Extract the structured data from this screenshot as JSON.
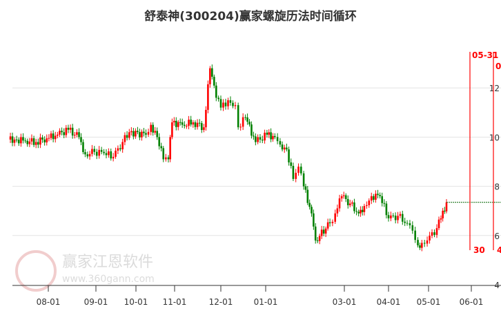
{
  "chart_data": {
    "type": "candlestick",
    "title": "舒泰神(300204)赢家螺旋历法时间循环",
    "x_ticks": [
      "08-01",
      "09-01",
      "10-01",
      "11-01",
      "12-01",
      "01-01",
      "03-01",
      "04-01",
      "05-01",
      "06-01"
    ],
    "y_ticks": [
      4,
      6,
      8,
      10,
      12
    ],
    "ylim": [
      4,
      13.6
    ],
    "grid": true,
    "colors": {
      "up": "#ff0000",
      "down": "#008000",
      "cycle_line": "#ff0000",
      "last_price_line": "#006400"
    },
    "last_price": 7.35,
    "cycle_markers": [
      {
        "date": "05-31",
        "label_top": "05-31",
        "label_bottom": "30"
      },
      {
        "date": "06-17",
        "label_top": "0",
        "label_bottom": "4"
      }
    ],
    "closes": [
      [
        "07-10",
        9.9
      ],
      [
        "07-17",
        9.85
      ],
      [
        "07-24",
        9.8
      ],
      [
        "07-31",
        9.95
      ],
      [
        "08-07",
        10.1
      ],
      [
        "08-14",
        10.3
      ],
      [
        "08-21",
        10.0
      ],
      [
        "08-25",
        9.3
      ],
      [
        "08-31",
        9.4
      ],
      [
        "09-07",
        9.35
      ],
      [
        "09-14",
        9.2
      ],
      [
        "09-21",
        9.8
      ],
      [
        "09-26",
        10.2
      ],
      [
        "10-09",
        10.1
      ],
      [
        "10-13",
        10.5
      ],
      [
        "10-18",
        10.0
      ],
      [
        "10-23",
        9.1
      ],
      [
        "10-27",
        9.1
      ],
      [
        "10-30",
        10.6
      ],
      [
        "11-06",
        10.5
      ],
      [
        "11-13",
        10.6
      ],
      [
        "11-20",
        10.4
      ],
      [
        "11-24",
        12.8
      ],
      [
        "11-28",
        11.6
      ],
      [
        "12-01",
        11.2
      ],
      [
        "12-06",
        11.5
      ],
      [
        "12-11",
        11.3
      ],
      [
        "12-13",
        10.4
      ],
      [
        "12-18",
        10.8
      ],
      [
        "12-25",
        9.8
      ],
      [
        "01-02",
        10.1
      ],
      [
        "01-08",
        10.0
      ],
      [
        "01-12",
        9.7
      ],
      [
        "01-17",
        9.5
      ],
      [
        "01-22",
        8.3
      ],
      [
        "01-26",
        8.8
      ],
      [
        "01-30",
        8.0
      ],
      [
        "02-05",
        6.9
      ],
      [
        "02-08",
        5.8
      ],
      [
        "02-19",
        6.5
      ],
      [
        "02-23",
        6.9
      ],
      [
        "02-28",
        7.6
      ],
      [
        "03-05",
        7.3
      ],
      [
        "03-11",
        6.9
      ],
      [
        "03-15",
        7.2
      ],
      [
        "03-20",
        7.6
      ],
      [
        "03-26",
        7.6
      ],
      [
        "04-01",
        6.7
      ],
      [
        "04-08",
        6.8
      ],
      [
        "04-15",
        6.5
      ],
      [
        "04-19",
        6.2
      ],
      [
        "04-23",
        5.6
      ],
      [
        "04-26",
        5.7
      ],
      [
        "04-30",
        5.8
      ],
      [
        "05-07",
        6.3
      ],
      [
        "05-10",
        6.7
      ],
      [
        "05-14",
        7.35
      ]
    ]
  },
  "watermark": {
    "logo": "江赢恩家",
    "name": "赢家江恩软件",
    "url": "www.360gann.com"
  }
}
